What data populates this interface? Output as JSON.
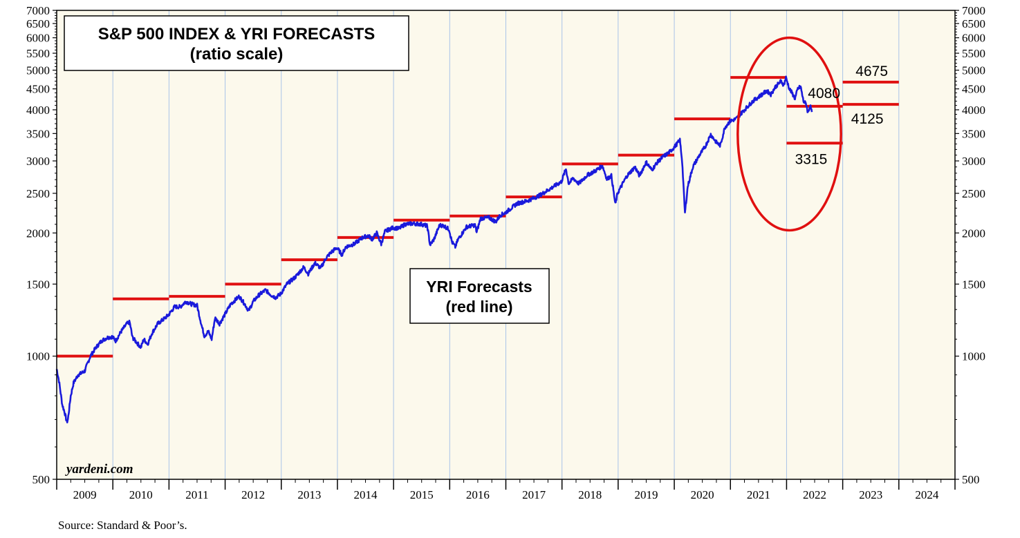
{
  "chart_data": {
    "type": "line",
    "title": "S&P 500 INDEX & YRI FORECASTS",
    "subtitle": "(ratio scale)",
    "legend_title": "YRI Forecasts",
    "legend_subtitle": "(red line)",
    "watermark": "yardeni.com",
    "source": "Source: Standard & Poor’s.",
    "scale": "log",
    "ylim": [
      500,
      7000
    ],
    "y_ticks": [
      500,
      1000,
      1500,
      2000,
      2500,
      3000,
      3500,
      4000,
      4500,
      5000,
      5500,
      6000,
      6500,
      7000
    ],
    "y_tick_labels": [
      "500",
      "1000",
      "1500",
      "2000",
      "2500",
      "3000",
      "3500",
      "4000",
      "4500",
      "5000",
      "5500",
      "6000",
      "6500",
      "7000"
    ],
    "xlim": [
      2009,
      2025
    ],
    "x_categories": [
      "2009",
      "2010",
      "2011",
      "2012",
      "2013",
      "2014",
      "2015",
      "2016",
      "2017",
      "2018",
      "2019",
      "2020",
      "2021",
      "2022",
      "2023",
      "2024"
    ],
    "series": [
      {
        "name": "S&P 500 Index",
        "color": "#1a1adb",
        "points": [
          [
            2009.0,
            930
          ],
          [
            2009.04,
            870
          ],
          [
            2009.1,
            760
          ],
          [
            2009.14,
            730
          ],
          [
            2009.18,
            690
          ],
          [
            2009.2,
            700
          ],
          [
            2009.25,
            800
          ],
          [
            2009.3,
            860
          ],
          [
            2009.38,
            900
          ],
          [
            2009.45,
            910
          ],
          [
            2009.5,
            920
          ],
          [
            2009.55,
            960
          ],
          [
            2009.6,
            1000
          ],
          [
            2009.7,
            1050
          ],
          [
            2009.8,
            1090
          ],
          [
            2009.9,
            1110
          ],
          [
            2009.99,
            1115
          ],
          [
            2010.05,
            1090
          ],
          [
            2010.15,
            1150
          ],
          [
            2010.25,
            1200
          ],
          [
            2010.3,
            1210
          ],
          [
            2010.35,
            1110
          ],
          [
            2010.45,
            1070
          ],
          [
            2010.5,
            1050
          ],
          [
            2010.55,
            1100
          ],
          [
            2010.62,
            1070
          ],
          [
            2010.7,
            1140
          ],
          [
            2010.8,
            1200
          ],
          [
            2010.9,
            1230
          ],
          [
            2010.99,
            1260
          ],
          [
            2011.1,
            1320
          ],
          [
            2011.2,
            1320
          ],
          [
            2011.3,
            1360
          ],
          [
            2011.4,
            1340
          ],
          [
            2011.5,
            1330
          ],
          [
            2011.58,
            1190
          ],
          [
            2011.63,
            1120
          ],
          [
            2011.7,
            1150
          ],
          [
            2011.76,
            1100
          ],
          [
            2011.82,
            1240
          ],
          [
            2011.9,
            1200
          ],
          [
            2011.99,
            1260
          ],
          [
            2012.1,
            1340
          ],
          [
            2012.25,
            1400
          ],
          [
            2012.35,
            1340
          ],
          [
            2012.42,
            1290
          ],
          [
            2012.5,
            1360
          ],
          [
            2012.6,
            1410
          ],
          [
            2012.72,
            1450
          ],
          [
            2012.82,
            1410
          ],
          [
            2012.9,
            1390
          ],
          [
            2012.99,
            1420
          ],
          [
            2013.1,
            1500
          ],
          [
            2013.25,
            1560
          ],
          [
            2013.4,
            1650
          ],
          [
            2013.48,
            1590
          ],
          [
            2013.6,
            1690
          ],
          [
            2013.7,
            1640
          ],
          [
            2013.8,
            1740
          ],
          [
            2013.9,
            1800
          ],
          [
            2013.99,
            1840
          ],
          [
            2014.08,
            1770
          ],
          [
            2014.15,
            1850
          ],
          [
            2014.3,
            1880
          ],
          [
            2014.45,
            1950
          ],
          [
            2014.55,
            1970
          ],
          [
            2014.62,
            1930
          ],
          [
            2014.7,
            2000
          ],
          [
            2014.78,
            1880
          ],
          [
            2014.85,
            2020
          ],
          [
            2014.99,
            2060
          ],
          [
            2015.1,
            2050
          ],
          [
            2015.2,
            2100
          ],
          [
            2015.35,
            2110
          ],
          [
            2015.5,
            2100
          ],
          [
            2015.6,
            2080
          ],
          [
            2015.65,
            1870
          ],
          [
            2015.72,
            1930
          ],
          [
            2015.82,
            2090
          ],
          [
            2015.9,
            2080
          ],
          [
            2015.99,
            2040
          ],
          [
            2016.04,
            1900
          ],
          [
            2016.1,
            1850
          ],
          [
            2016.15,
            1930
          ],
          [
            2016.3,
            2070
          ],
          [
            2016.45,
            2090
          ],
          [
            2016.48,
            2010
          ],
          [
            2016.55,
            2170
          ],
          [
            2016.7,
            2180
          ],
          [
            2016.82,
            2130
          ],
          [
            2016.9,
            2210
          ],
          [
            2016.99,
            2240
          ],
          [
            2017.2,
            2360
          ],
          [
            2017.4,
            2400
          ],
          [
            2017.6,
            2470
          ],
          [
            2017.8,
            2570
          ],
          [
            2017.99,
            2670
          ],
          [
            2018.07,
            2870
          ],
          [
            2018.12,
            2640
          ],
          [
            2018.2,
            2720
          ],
          [
            2018.3,
            2640
          ],
          [
            2018.45,
            2770
          ],
          [
            2018.6,
            2840
          ],
          [
            2018.72,
            2920
          ],
          [
            2018.8,
            2710
          ],
          [
            2018.88,
            2760
          ],
          [
            2018.95,
            2350
          ],
          [
            2018.99,
            2500
          ],
          [
            2019.15,
            2750
          ],
          [
            2019.3,
            2900
          ],
          [
            2019.38,
            2760
          ],
          [
            2019.5,
            2980
          ],
          [
            2019.6,
            2850
          ],
          [
            2019.7,
            2980
          ],
          [
            2019.8,
            3070
          ],
          [
            2019.9,
            3140
          ],
          [
            2019.99,
            3230
          ],
          [
            2020.1,
            3370
          ],
          [
            2020.14,
            3000
          ],
          [
            2020.19,
            2237
          ],
          [
            2020.24,
            2600
          ],
          [
            2020.33,
            2900
          ],
          [
            2020.45,
            3100
          ],
          [
            2020.55,
            3250
          ],
          [
            2020.65,
            3480
          ],
          [
            2020.75,
            3330
          ],
          [
            2020.82,
            3270
          ],
          [
            2020.9,
            3620
          ],
          [
            2020.99,
            3750
          ],
          [
            2021.1,
            3800
          ],
          [
            2021.25,
            4000
          ],
          [
            2021.4,
            4200
          ],
          [
            2021.55,
            4350
          ],
          [
            2021.65,
            4450
          ],
          [
            2021.72,
            4360
          ],
          [
            2021.8,
            4550
          ],
          [
            2021.9,
            4700
          ],
          [
            2021.95,
            4600
          ],
          [
            2021.99,
            4790
          ],
          [
            2022.05,
            4500
          ],
          [
            2022.1,
            4390
          ],
          [
            2022.15,
            4260
          ],
          [
            2022.2,
            4500
          ],
          [
            2022.25,
            4560
          ],
          [
            2022.3,
            4200
          ],
          [
            2022.35,
            4130
          ],
          [
            2022.38,
            3930
          ],
          [
            2022.42,
            4100
          ],
          [
            2022.45,
            3950
          ]
        ]
      }
    ],
    "forecasts": {
      "name": "YRI Forecasts",
      "color": "#e01010",
      "segments": [
        {
          "year": 2009,
          "value": 1000
        },
        {
          "year": 2010,
          "value": 1380
        },
        {
          "year": 2011,
          "value": 1400
        },
        {
          "year": 2012,
          "value": 1500
        },
        {
          "year": 2013,
          "value": 1720
        },
        {
          "year": 2014,
          "value": 1950
        },
        {
          "year": 2015,
          "value": 2150
        },
        {
          "year": 2016,
          "value": 2200
        },
        {
          "year": 2017,
          "value": 2450
        },
        {
          "year": 2018,
          "value": 2950
        },
        {
          "year": 2019,
          "value": 3100
        },
        {
          "year": 2020,
          "value": 3800
        },
        {
          "year": 2021,
          "value": 4800
        },
        {
          "year": 2022,
          "value": 4080
        },
        {
          "year": 2022,
          "value": 3315
        },
        {
          "year": 2023,
          "value": 4675
        },
        {
          "year": 2023,
          "value": 4125
        }
      ]
    },
    "annotations": [
      {
        "text": "4080",
        "value": 4080
      },
      {
        "text": "3315",
        "value": 3315
      },
      {
        "text": "4675",
        "value": 4675
      },
      {
        "text": "4125",
        "value": 4125
      }
    ]
  },
  "colors": {
    "plot_background": "#fcf9ec",
    "gridline": "#a9c3e8",
    "index_line": "#1a1adb",
    "forecast_line": "#e01010",
    "highlight_ellipse": "#e01010"
  }
}
